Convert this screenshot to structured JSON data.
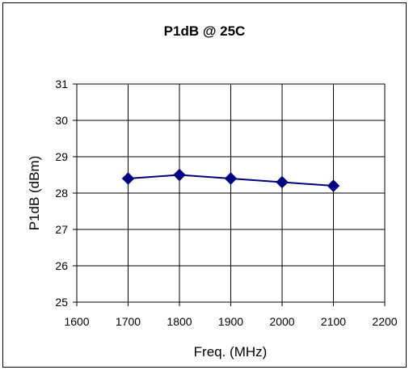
{
  "chart_data": {
    "type": "line",
    "title": "P1dB @ 25C",
    "xlabel": "Freq. (MHz)",
    "ylabel": "P1dB (dBm)",
    "xlim": [
      1600,
      2200
    ],
    "ylim": [
      25,
      31
    ],
    "x_ticks": [
      1600,
      1700,
      1800,
      1900,
      2000,
      2100,
      2200
    ],
    "y_ticks": [
      25,
      26,
      27,
      28,
      29,
      30,
      31
    ],
    "x_tick_labels": [
      "1600",
      "1700",
      "1800",
      "1900",
      "2000",
      "2100",
      "2200"
    ],
    "y_tick_labels": [
      "25",
      "26",
      "27",
      "28",
      "29",
      "30",
      "31"
    ],
    "grid": true,
    "marker": "diamond",
    "series_color": "#000080",
    "series": [
      {
        "x": [
          1700,
          1800,
          1900,
          2000,
          2100
        ],
        "values": [
          28.4,
          28.5,
          28.4,
          28.3,
          28.2
        ]
      }
    ]
  }
}
